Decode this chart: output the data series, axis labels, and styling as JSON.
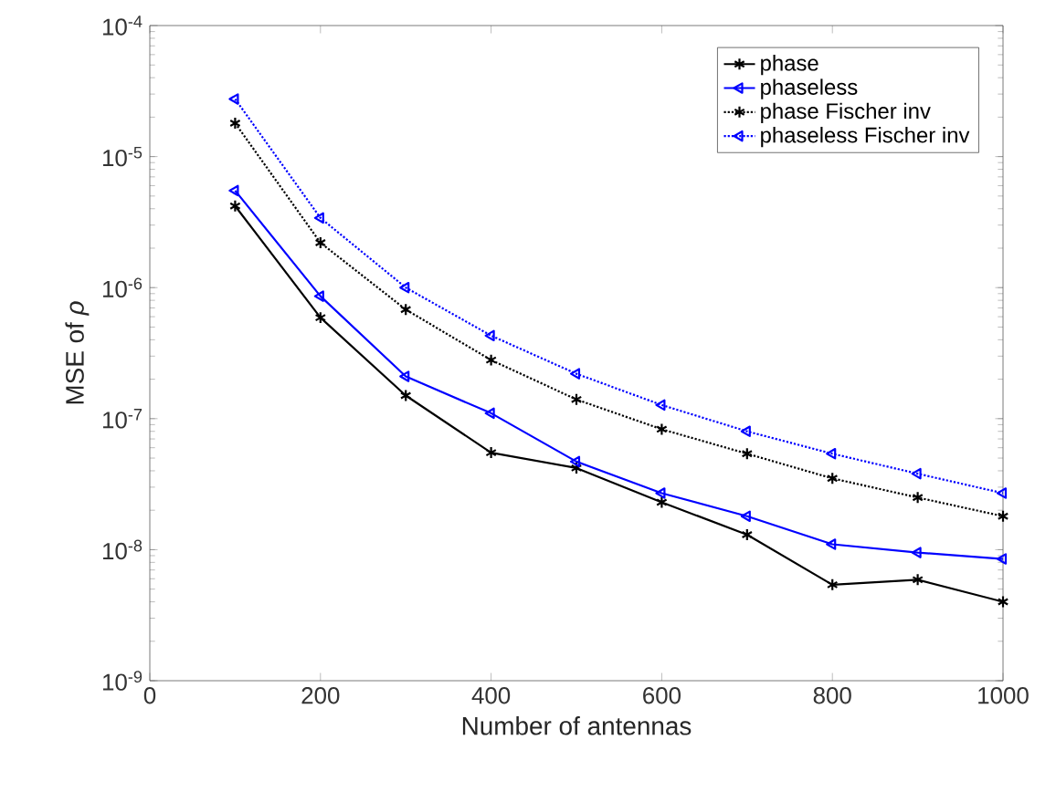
{
  "chart_data": {
    "type": "line",
    "xlabel": "Number of antennas",
    "ylabel": "MSE of *ρ*",
    "x": [
      100,
      200,
      300,
      400,
      500,
      600,
      700,
      800,
      900,
      1000
    ],
    "series": [
      {
        "name": "phase",
        "color": "#000000",
        "marker": "cross",
        "line_style": "solid",
        "values": [
          4.2e-06,
          5.9e-07,
          1.5e-07,
          5.5e-08,
          4.2e-08,
          2.3e-08,
          1.3e-08,
          5.4e-09,
          5.9e-09,
          4e-09
        ]
      },
      {
        "name": "phaseless",
        "color": "#0000ff",
        "marker": "triangle",
        "line_style": "solid",
        "values": [
          5.5e-06,
          8.6e-07,
          2.1e-07,
          1.1e-07,
          4.7e-08,
          2.7e-08,
          1.8e-08,
          1.1e-08,
          9.5e-09,
          8.5e-09
        ]
      },
      {
        "name": "phase Fischer inv",
        "color": "#000000",
        "marker": "cross",
        "line_style": "dotted",
        "values": [
          1.8e-05,
          2.2e-06,
          6.8e-07,
          2.8e-07,
          1.4e-07,
          8.3e-08,
          5.4e-08,
          3.5e-08,
          2.5e-08,
          1.8e-08
        ]
      },
      {
        "name": "phaseless Fischer inv",
        "color": "#0000ff",
        "marker": "triangle",
        "line_style": "dotted",
        "values": [
          2.75e-05,
          3.4e-06,
          1e-06,
          4.3e-07,
          2.2e-07,
          1.27e-07,
          8e-08,
          5.4e-08,
          3.8e-08,
          2.7e-08
        ]
      }
    ],
    "xlim": [
      0,
      1000
    ],
    "xticks": [
      0,
      200,
      400,
      600,
      800,
      1000
    ],
    "ylim": [
      1e-09,
      0.0001
    ],
    "yticks": [
      {
        "value": 1e-09,
        "label": "10$^{-9}$"
      },
      {
        "value": 1e-08,
        "label": "10$^{-8}$"
      },
      {
        "value": 1e-07,
        "label": "10$^{-7}$"
      },
      {
        "value": 1e-06,
        "label": "10$^{-6}$"
      },
      {
        "value": 1e-05,
        "label": "10$^{-5}$"
      },
      {
        "value": 0.0001,
        "label": "10$^{-4}$"
      }
    ],
    "log": "y",
    "grid": false,
    "legend": "top right"
  }
}
